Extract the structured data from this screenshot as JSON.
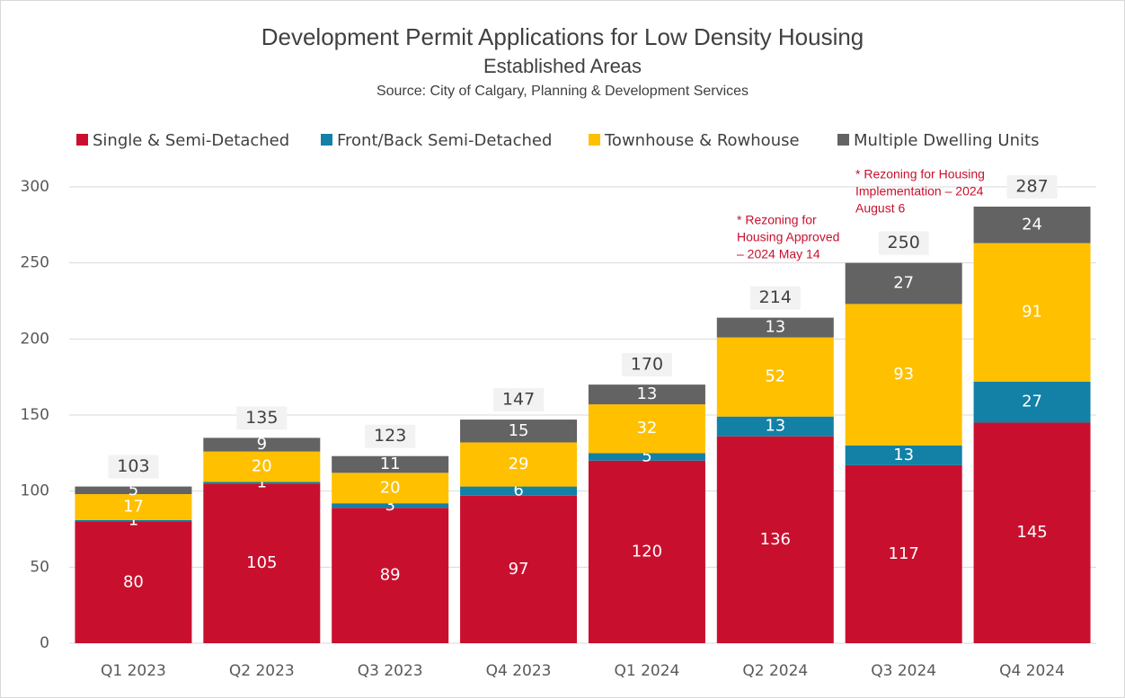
{
  "chart_data": {
    "type": "stacked-bar",
    "title": "Development Permit Applications for Low Density Housing",
    "subtitle": "Established Areas",
    "source": "Source: City of Calgary, Planning & Development Services",
    "categories": [
      "Q1 2023",
      "Q2 2023",
      "Q3 2023",
      "Q4 2023",
      "Q1 2024",
      "Q2 2024",
      "Q3 2024",
      "Q4 2024"
    ],
    "series": [
      {
        "name": "Single & Semi-Detached",
        "color": "#c8102e",
        "values": [
          80,
          105,
          89,
          97,
          120,
          136,
          117,
          145
        ]
      },
      {
        "name": "Front/Back Semi-Detached",
        "color": "#1380a6",
        "values": [
          1,
          1,
          3,
          6,
          5,
          13,
          13,
          27
        ]
      },
      {
        "name": "Townhouse & Rowhouse",
        "color": "#ffc000",
        "values": [
          17,
          20,
          20,
          29,
          32,
          52,
          93,
          91
        ]
      },
      {
        "name": "Multiple Dwelling Units",
        "color": "#636363",
        "values": [
          5,
          9,
          11,
          15,
          13,
          13,
          27,
          24
        ]
      }
    ],
    "totals": [
      103,
      135,
      123,
      147,
      170,
      214,
      250,
      287
    ],
    "annotations": [
      [
        "* Rezoning for",
        "Housing Approved",
        "– 2024 May 14"
      ],
      [
        "* Rezoning for Housing",
        "Implementation – 2024",
        "August 6"
      ]
    ],
    "ylim": [
      0,
      300
    ],
    "yticks": [
      0,
      50,
      100,
      150,
      200,
      250,
      300
    ],
    "grid": true,
    "legend": "top"
  }
}
